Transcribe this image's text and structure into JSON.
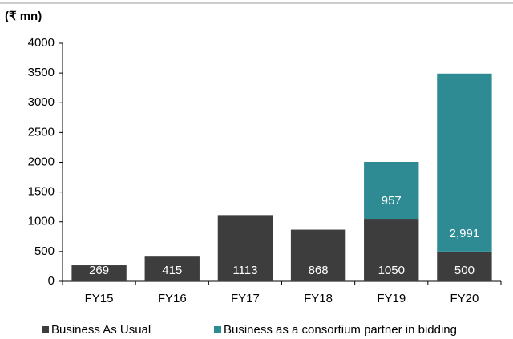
{
  "chart_data": {
    "type": "stacked_bar",
    "ylabel": "(₹ mn)",
    "categories": [
      "FY15",
      "FY16",
      "FY17",
      "FY18",
      "FY19",
      "FY20"
    ],
    "series": [
      {
        "name": "Business As Usual",
        "color": "#3d3d3d",
        "values": [
          269,
          415,
          1113,
          868,
          1050,
          500
        ]
      },
      {
        "name": "Business as a consortium partner in bidding",
        "color": "#2e8b94",
        "values": [
          null,
          null,
          null,
          null,
          957,
          2991
        ],
        "value_labels": [
          null,
          null,
          null,
          null,
          "957",
          "2,991"
        ]
      }
    ],
    "ylim": [
      0,
      4000
    ],
    "yticks": [
      0,
      500,
      1000,
      1500,
      2000,
      2500,
      3000,
      3500,
      4000
    ],
    "grid": false
  }
}
